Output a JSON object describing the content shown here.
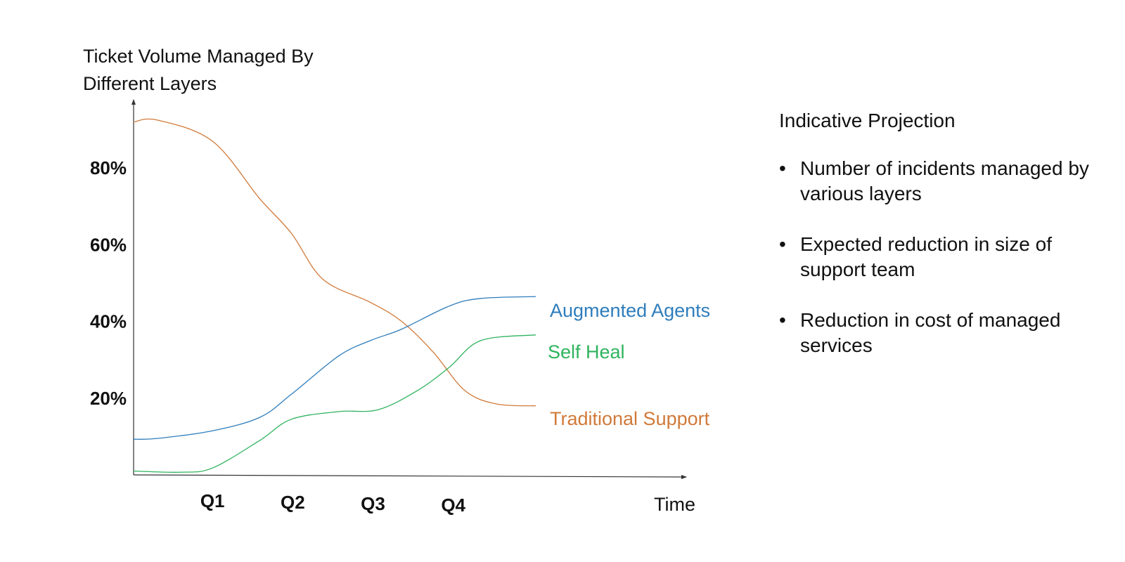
{
  "chart_data": {
    "type": "line",
    "title_lines": [
      "Ticket Volume Managed By",
      "Different Layers"
    ],
    "xlabel": "Time",
    "ylabel": "",
    "categories": [
      "Q1",
      "Q2",
      "Q3",
      "Q4"
    ],
    "y_ticks": [
      {
        "value": 20,
        "label": "20%"
      },
      {
        "value": 40,
        "label": "40%"
      },
      {
        "value": 60,
        "label": "60%"
      },
      {
        "value": 80,
        "label": "80%"
      }
    ],
    "ylim": [
      0,
      100
    ],
    "xlim": [
      0,
      6
    ],
    "series": [
      {
        "name": "Traditional Support",
        "color": "#d07a3a",
        "points": [
          [
            0,
            92
          ],
          [
            0.3,
            92.5
          ],
          [
            1,
            87
          ],
          [
            1.6,
            72
          ],
          [
            2,
            63
          ],
          [
            2.4,
            51
          ],
          [
            3,
            45
          ],
          [
            3.4,
            40
          ],
          [
            3.8,
            32
          ],
          [
            4.2,
            22
          ],
          [
            4.6,
            18.5
          ],
          [
            5.1,
            18
          ]
        ]
      },
      {
        "name": "Augmented Agents",
        "color": "#2e7dbc",
        "points": [
          [
            0,
            9.3
          ],
          [
            0.3,
            9.5
          ],
          [
            1,
            11.5
          ],
          [
            1.6,
            15
          ],
          [
            2,
            21
          ],
          [
            2.6,
            31
          ],
          [
            3,
            35
          ],
          [
            3.4,
            38
          ],
          [
            4,
            44
          ],
          [
            4.4,
            46
          ],
          [
            5.1,
            46.5
          ]
        ]
      },
      {
        "name": "Self Heal",
        "color": "#2fb35e",
        "points": [
          [
            0,
            1
          ],
          [
            0.6,
            0.7
          ],
          [
            1,
            1.8
          ],
          [
            1.6,
            9
          ],
          [
            2,
            14.5
          ],
          [
            2.6,
            16.5
          ],
          [
            3.1,
            17
          ],
          [
            3.6,
            22
          ],
          [
            4,
            28
          ],
          [
            4.4,
            35
          ],
          [
            5.1,
            36.5
          ]
        ]
      }
    ]
  },
  "side_panel": {
    "title": "Indicative Projection",
    "bullet_char": "•",
    "bullets": [
      "Number of incidents managed by various layers",
      "Expected reduction in size of support team",
      "Reduction in cost of managed services"
    ]
  }
}
